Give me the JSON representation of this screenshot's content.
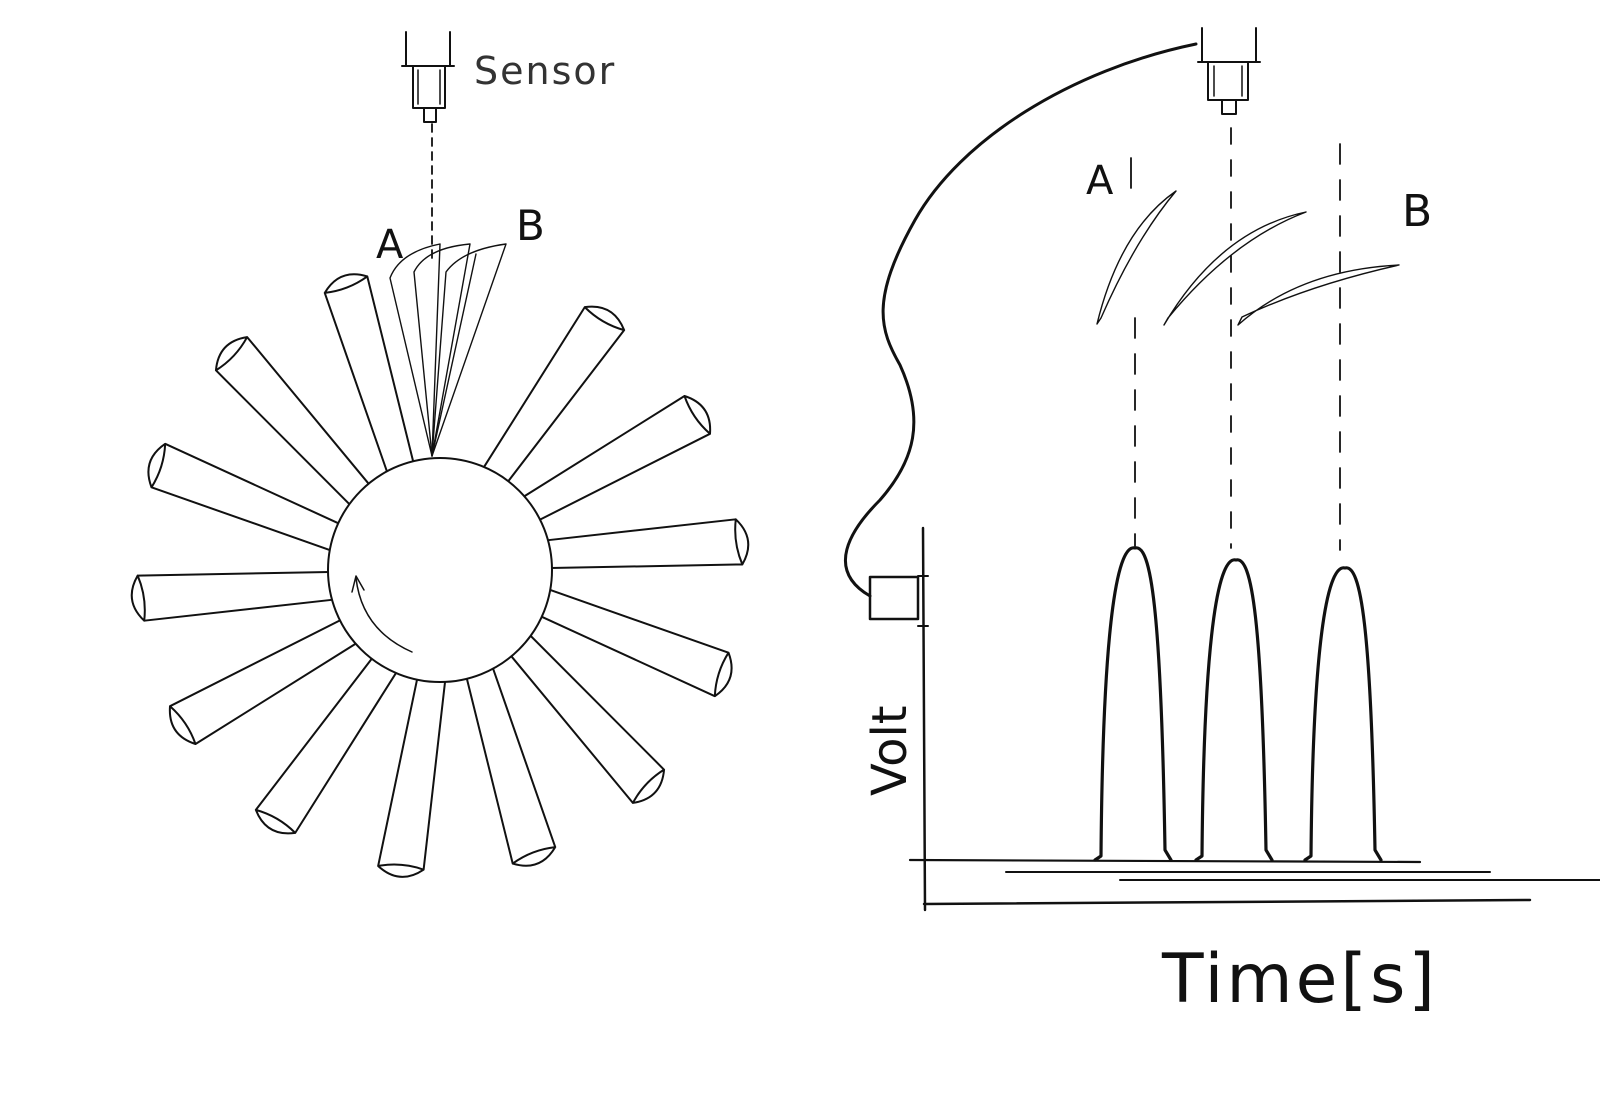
{
  "sensor_label": "Sensor",
  "left_blade_a": "A",
  "left_blade_b": "B",
  "right_blade_a": "A",
  "right_blade_b": "B",
  "y_axis_label": "Volt",
  "x_axis_label": "Time[s]",
  "rotor": {
    "blade_count": 14
  },
  "signal": {
    "pulse_count": 3
  }
}
